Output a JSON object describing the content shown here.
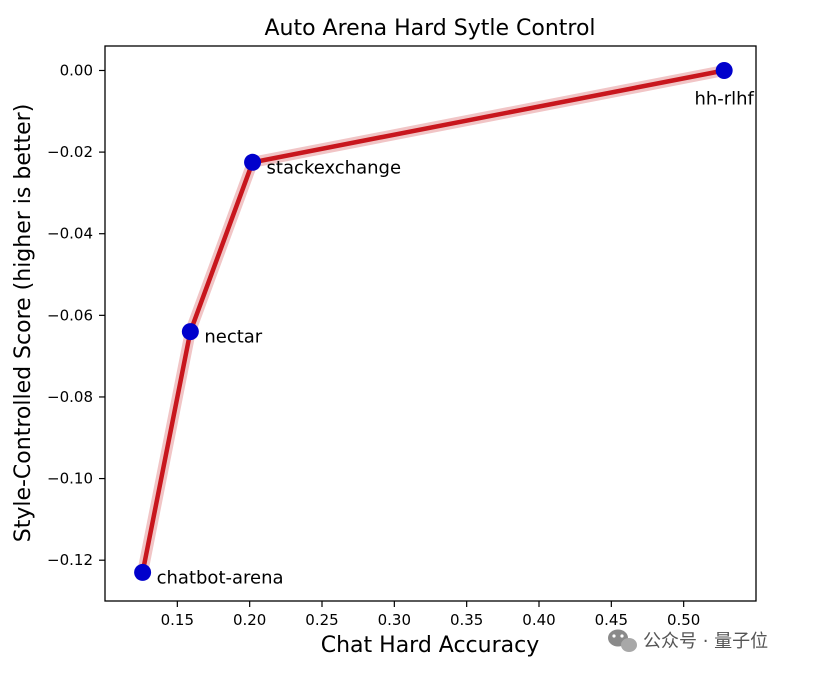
{
  "chart_data": {
    "type": "line",
    "title": "Auto Arena Hard Sytle Control",
    "xlabel": "Chat Hard Accuracy",
    "ylabel": "Style-Controlled Score (higher is better)",
    "xlim": [
      0.1,
      0.55
    ],
    "ylim": [
      -0.13,
      0.006
    ],
    "xticks": [
      0.15,
      0.2,
      0.25,
      0.3,
      0.35,
      0.4,
      0.45,
      0.5
    ],
    "xtick_labels": [
      "0.15",
      "0.20",
      "0.25",
      "0.30",
      "0.35",
      "0.40",
      "0.45",
      "0.50"
    ],
    "yticks": [
      0.0,
      -0.02,
      -0.04,
      -0.06,
      -0.08,
      -0.1,
      -0.12
    ],
    "ytick_labels": [
      "0.00",
      "−0.02",
      "−0.04",
      "−0.06",
      "−0.08",
      "−0.10",
      "−0.12"
    ],
    "grid": false,
    "line_color": "#c8161d",
    "marker_color": "#0000cc",
    "points": [
      {
        "label": "chatbot-arena",
        "x": 0.126,
        "y": -0.123
      },
      {
        "label": "nectar",
        "x": 0.159,
        "y": -0.064
      },
      {
        "label": "stackexchange",
        "x": 0.202,
        "y": -0.0225
      },
      {
        "label": "hh-rlhf",
        "x": 0.528,
        "y": 0.0
      }
    ]
  },
  "watermark": {
    "text": "公众号 · 量子位",
    "icon": "wechat-icon"
  }
}
